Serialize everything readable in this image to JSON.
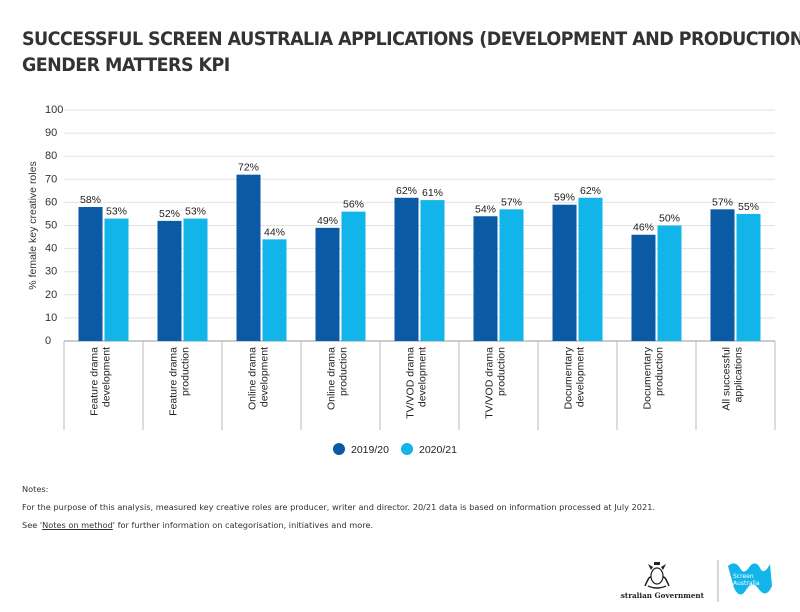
{
  "title_line1": "SUCCESSFUL SCREEN AUSTRALIA APPLICATIONS (DEVELOPMENT AND PRODUCTION)",
  "title_line2": "GENDER MATTERS KPI",
  "chart_data": {
    "type": "bar",
    "ylabel": "% female key creative roles",
    "ylim": [
      0,
      100
    ],
    "yticks": [
      0,
      10,
      20,
      30,
      40,
      50,
      60,
      70,
      80,
      90,
      100
    ],
    "grid": true,
    "legend_position": "bottom-center",
    "categories": [
      [
        "Feature drama",
        "development"
      ],
      [
        "Feature drama",
        "production"
      ],
      [
        "Online drama",
        "development"
      ],
      [
        "Online drama",
        "production"
      ],
      [
        "TV/VOD drama",
        "development"
      ],
      [
        "TV/VOD drama",
        "production"
      ],
      [
        "Documentary",
        "development"
      ],
      [
        "Documentary",
        "production"
      ],
      [
        "All successful",
        "applications"
      ]
    ],
    "series": [
      {
        "name": "2019/20",
        "color": "#0a5aa6",
        "values": [
          58,
          52,
          72,
          49,
          62,
          54,
          59,
          46,
          57
        ],
        "labels": [
          "58%",
          "52%",
          "72%",
          "49%",
          "62%",
          "54%",
          "59%",
          "46%",
          "57%"
        ]
      },
      {
        "name": "2020/21",
        "color": "#12b5ea",
        "values": [
          53,
          53,
          44,
          56,
          61,
          57,
          62,
          50,
          55
        ],
        "labels": [
          "53%",
          "53%",
          "44%",
          "56%",
          "61%",
          "57%",
          "62%",
          "50%",
          "55%"
        ]
      }
    ]
  },
  "notes": {
    "heading": "Notes:",
    "line1": "For the purpose of this analysis, measured key creative roles are producer, writer and director. 20/21 data is based on information processed at July 2021.",
    "line2_prefix": "See '",
    "line2_link": "Notes on method",
    "line2_suffix": "' for further information on categorisation, initiatives and more."
  },
  "logos": {
    "govt": "Australian Government",
    "sa_line1": "Screen",
    "sa_line2": "Australia"
  }
}
